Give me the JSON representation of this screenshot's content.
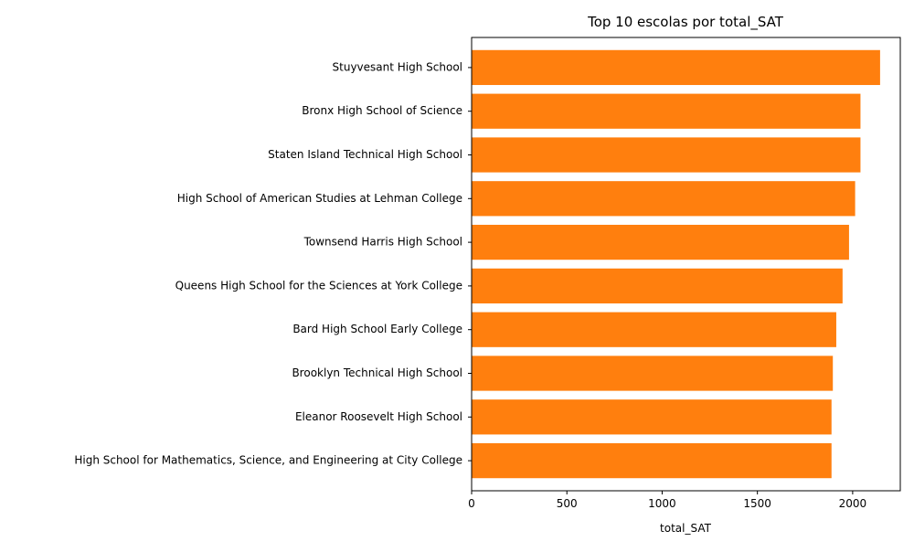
{
  "chart_data": {
    "type": "bar",
    "orientation": "horizontal",
    "title": "Top 10 escolas por total_SAT",
    "xlabel": "total_SAT",
    "ylabel": "",
    "xlim": [
      0,
      2250
    ],
    "xticks": [
      0,
      500,
      1000,
      1500,
      2000
    ],
    "grid": false,
    "bar_color": "#ff7f0e",
    "categories": [
      "Stuyvesant High School",
      "Bronx High School of Science",
      "Staten Island Technical High School",
      "High School of American Studies at Lehman College",
      "Townsend Harris High School",
      "Queens High School for the Sciences at York College",
      "Bard High School Early College",
      "Brooklyn Technical High School",
      "Eleanor Roosevelt High School",
      "High School for Mathematics, Science, and Engineering at City College"
    ],
    "values": [
      2144,
      2041,
      2041,
      2013,
      1981,
      1947,
      1914,
      1896,
      1889,
      1889
    ]
  }
}
